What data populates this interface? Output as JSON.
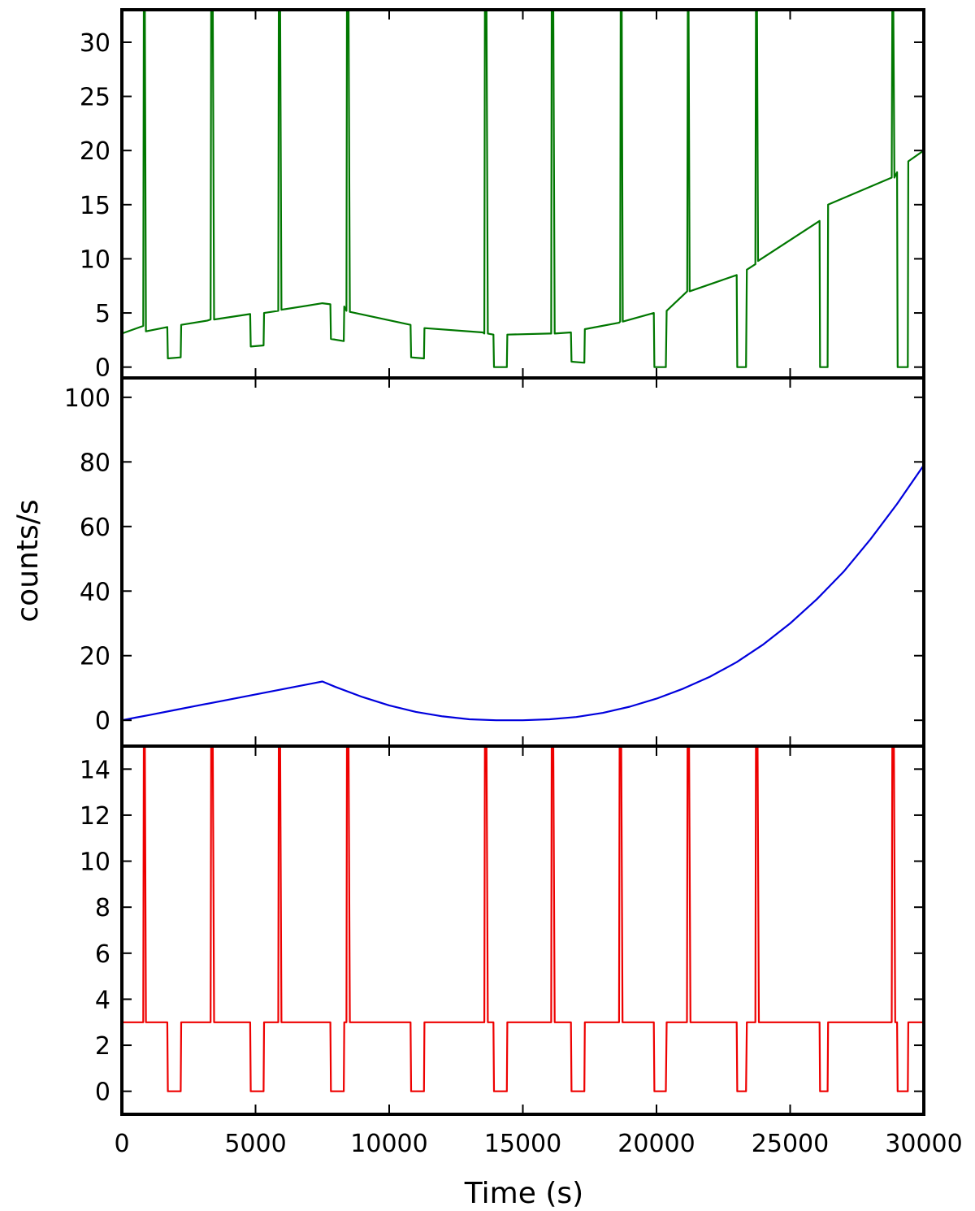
{
  "figure": {
    "ylabel": "counts/s",
    "xlabel": "Time (s)"
  },
  "chart_data": [
    {
      "type": "line",
      "panel": "top",
      "title": "",
      "xlabel": "Time (s)",
      "ylabel": "counts/s",
      "xlim": [
        0,
        30000
      ],
      "ylim": [
        -1,
        33
      ],
      "color": "#007700",
      "grid": false,
      "x_ticks": [
        0,
        5000,
        10000,
        15000,
        20000,
        25000,
        30000
      ],
      "y_ticks": [
        0,
        5,
        10,
        15,
        20,
        25,
        30
      ],
      "series": [
        {
          "x": [
            0,
            800,
            820,
            860,
            900,
            1700,
            1720,
            2200,
            2220,
            3200,
            3320,
            3340,
            3400,
            3450,
            4800,
            4820,
            5300,
            5320,
            5850,
            5870,
            5920,
            5970,
            7500,
            7800,
            7820,
            8300,
            8320,
            8400,
            8420,
            8480,
            8530,
            10800,
            10820,
            11300,
            11320,
            13500,
            13560,
            13580,
            13640,
            13690,
            13900,
            13920,
            14400,
            14420,
            16000,
            16060,
            16080,
            16140,
            16190,
            16800,
            16820,
            17300,
            17320,
            18600,
            18640,
            18660,
            18700,
            18740,
            19900,
            19920,
            20350,
            20380,
            21150,
            21170,
            21200,
            21240,
            23000,
            23020,
            23350,
            23380,
            23700,
            23720,
            23760,
            23800,
            26100,
            26120,
            26400,
            26420,
            28800,
            28820,
            28860,
            28900,
            29000,
            29020,
            29400,
            29420,
            30000
          ],
          "y": [
            3.1,
            3.8,
            33,
            33,
            3.3,
            3.7,
            0.8,
            0.9,
            3.9,
            4.3,
            4.4,
            33,
            33,
            4.4,
            4.9,
            1.9,
            2.0,
            5.0,
            5.2,
            33,
            33,
            5.3,
            5.9,
            5.8,
            2.6,
            2.4,
            5.6,
            5.2,
            33,
            33,
            5.1,
            3.9,
            0.9,
            0.8,
            3.6,
            3.2,
            3.1,
            33,
            33,
            3.1,
            3.0,
            0.0,
            0.0,
            3.0,
            3.1,
            3.1,
            33,
            33,
            3.1,
            3.2,
            0.5,
            0.4,
            3.5,
            4.1,
            4.2,
            33,
            33,
            4.2,
            5.0,
            0.0,
            0.0,
            5.2,
            7.0,
            33,
            33,
            7.0,
            8.5,
            0.0,
            0.0,
            9.0,
            9.5,
            33,
            33,
            9.8,
            13.5,
            0.0,
            0.0,
            15.0,
            17.5,
            33,
            33,
            17.5,
            18.0,
            0.0,
            0.0,
            19.0,
            20.0
          ]
        }
      ]
    },
    {
      "type": "line",
      "panel": "middle",
      "title": "",
      "xlabel": "Time (s)",
      "ylabel": "counts/s",
      "xlim": [
        0,
        30000
      ],
      "ylim": [
        -8,
        106
      ],
      "color": "#0000dd",
      "grid": false,
      "x_ticks": [
        0,
        5000,
        10000,
        15000,
        20000,
        25000,
        30000
      ],
      "y_ticks": [
        0,
        20,
        40,
        60,
        80,
        100
      ],
      "series": [
        {
          "x": [
            0,
            500,
            1000,
            2000,
            3000,
            4000,
            5000,
            6000,
            7000,
            7500,
            8000,
            9000,
            10000,
            11000,
            12000,
            13000,
            14000,
            15000,
            16000,
            17000,
            18000,
            19000,
            20000,
            21000,
            22000,
            23000,
            24000,
            25000,
            26000,
            27000,
            28000,
            29000,
            30000
          ],
          "y": [
            0,
            0.8,
            1.6,
            3.2,
            4.8,
            6.4,
            8.0,
            9.6,
            11.2,
            12.0,
            10.3,
            7.2,
            4.6,
            2.6,
            1.2,
            0.3,
            0.0,
            0.0,
            0.3,
            1.0,
            2.3,
            4.2,
            6.7,
            9.8,
            13.5,
            18.0,
            23.5,
            30.0,
            37.5,
            46.0,
            56.0,
            67.0,
            79.0
          ]
        }
      ]
    },
    {
      "type": "line",
      "panel": "bottom",
      "title": "",
      "xlabel": "Time (s)",
      "ylabel": "counts/s",
      "xlim": [
        0,
        30000
      ],
      "ylim": [
        -1,
        15
      ],
      "color": "#ee0000",
      "grid": false,
      "x_ticks": [
        0,
        5000,
        10000,
        15000,
        20000,
        25000,
        30000
      ],
      "x_tick_labels": [
        "0",
        "5000",
        "10000",
        "15000",
        "20000",
        "25000",
        "30000"
      ],
      "y_ticks": [
        0,
        2,
        4,
        6,
        8,
        10,
        12,
        14
      ],
      "series": [
        {
          "x": [
            0,
            800,
            820,
            860,
            900,
            1700,
            1720,
            2200,
            2220,
            3320,
            3340,
            3400,
            3450,
            4800,
            4820,
            5300,
            5320,
            5850,
            5870,
            5920,
            5970,
            7800,
            7820,
            8300,
            8320,
            8400,
            8420,
            8480,
            8530,
            10800,
            10820,
            11300,
            11320,
            13560,
            13580,
            13640,
            13690,
            13900,
            13920,
            14400,
            14420,
            16060,
            16080,
            16140,
            16190,
            16800,
            16820,
            17300,
            17320,
            18600,
            18620,
            18680,
            18730,
            19900,
            19920,
            20350,
            20380,
            21140,
            21160,
            21220,
            21270,
            23000,
            23020,
            23350,
            23380,
            23700,
            23720,
            23780,
            23830,
            26100,
            26120,
            26400,
            26420,
            28800,
            28820,
            28880,
            28930,
            29000,
            29020,
            29400,
            29420,
            30000
          ],
          "y": [
            3,
            3,
            15,
            15,
            3,
            3,
            0,
            0,
            3,
            3,
            15,
            15,
            3,
            3,
            0,
            0,
            3,
            3,
            15,
            15,
            3,
            3,
            0,
            0,
            3,
            3,
            15,
            15,
            3,
            3,
            0,
            0,
            3,
            3,
            15,
            15,
            3,
            3,
            0,
            0,
            3,
            3,
            15,
            15,
            3,
            3,
            0,
            0,
            3,
            3,
            15,
            15,
            3,
            3,
            0,
            0,
            3,
            3,
            15,
            15,
            3,
            3,
            0,
            0,
            3,
            3,
            15,
            15,
            3,
            3,
            0,
            0,
            3,
            3,
            15,
            15,
            3,
            3,
            0,
            0,
            3,
            3
          ]
        }
      ]
    }
  ]
}
